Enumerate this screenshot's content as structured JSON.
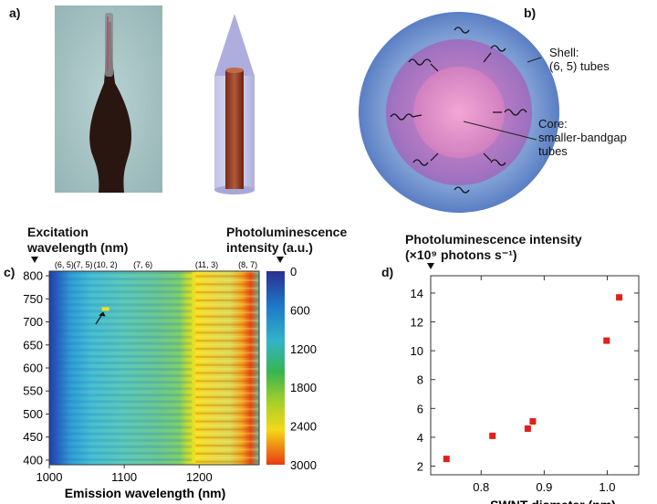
{
  "panels": {
    "a": {
      "label": "a)"
    },
    "b": {
      "label": "b)",
      "shell_label": "Shell:",
      "shell_sub": "(6, 5) tubes",
      "core_label": "Core:",
      "core_sub1": "smaller-bandgap",
      "core_sub2": "tubes"
    },
    "c": {
      "label": "c)",
      "header_left_1": "Excitation",
      "header_left_2": "wavelength (nm)",
      "header_right_1": "Photoluminescence",
      "header_right_2": "intensity (a.u.)",
      "chirality_labels": [
        "(6, 5)",
        "(7, 5)",
        "(10, 2)",
        "(7, 6)",
        "(11, 3)",
        "(8, 7)"
      ],
      "colorbar_ticks": [
        "0",
        "600",
        "1200",
        "1800",
        "2400",
        "3000"
      ]
    },
    "d": {
      "label": "d)"
    }
  },
  "chart_data": [
    {
      "type": "heatmap",
      "title": "",
      "xlabel": "Emission wavelength (nm)",
      "ylabel": "Excitation wavelength (nm)",
      "xlim": [
        1000,
        1280
      ],
      "ylim": [
        390,
        810
      ],
      "x_ticks": [
        "1000",
        "1100",
        "1200"
      ],
      "y_ticks": [
        "400",
        "450",
        "500",
        "550",
        "600",
        "650",
        "700",
        "750",
        "800"
      ],
      "colorbar": {
        "label": "Photoluminescence intensity (a.u.)",
        "range": [
          0,
          3000
        ],
        "ticks": [
          "0",
          "600",
          "1200",
          "1800",
          "2400",
          "3000"
        ]
      },
      "peaks_columns_nm": [
        1020,
        1045,
        1075,
        1125,
        1210,
        1265
      ],
      "peak_labels": [
        "(6, 5)",
        "(7, 5)",
        "(10, 2)",
        "(7, 6)",
        "(11, 3)",
        "(8, 7)"
      ]
    },
    {
      "type": "scatter",
      "title": "",
      "ylabel_1": "Photoluminescence intensity",
      "ylabel_2": "(×10⁹ photons s⁻¹)",
      "xlabel": "SWNT diameter (nm)",
      "xlim": [
        0.72,
        1.05
      ],
      "ylim": [
        1.4,
        15.2
      ],
      "x_ticks": [
        "0.8",
        "0.9",
        "1.0"
      ],
      "y_ticks": [
        "2",
        "4",
        "6",
        "8",
        "10",
        "12",
        "14"
      ],
      "points": [
        {
          "x": 0.745,
          "y": 2.5
        },
        {
          "x": 0.818,
          "y": 4.1
        },
        {
          "x": 0.874,
          "y": 4.6
        },
        {
          "x": 0.882,
          "y": 5.1
        },
        {
          "x": 0.999,
          "y": 10.7
        },
        {
          "x": 1.019,
          "y": 13.7
        }
      ],
      "marker_color": "#e0201b"
    }
  ]
}
